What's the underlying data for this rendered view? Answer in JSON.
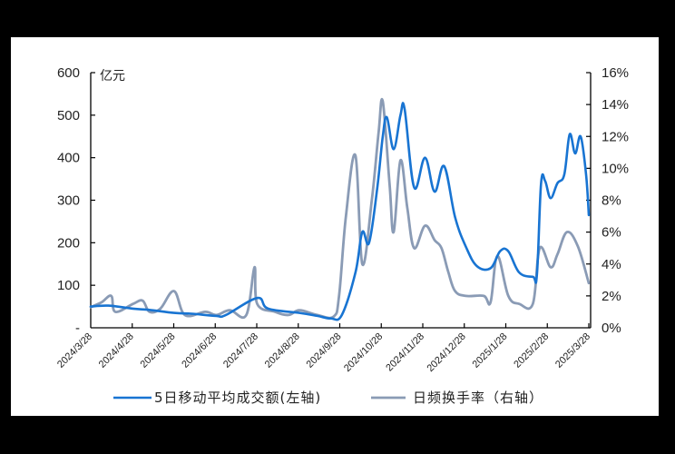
{
  "chart_data": {
    "type": "line",
    "title": "",
    "left_axis": {
      "unit_label": "亿元",
      "ticks": [
        "-",
        "100",
        "200",
        "300",
        "400",
        "500",
        "600"
      ],
      "ylim": [
        0,
        600
      ]
    },
    "right_axis": {
      "ticks": [
        "0%",
        "2%",
        "4%",
        "6%",
        "8%",
        "10%",
        "12%",
        "14%",
        "16%"
      ],
      "ylim": [
        0,
        16
      ]
    },
    "x_ticks": [
      "2024/3/28",
      "2024/4/28",
      "2024/5/28",
      "2024/6/28",
      "2024/7/28",
      "2024/8/28",
      "2024/9/28",
      "2024/10/28",
      "2024/11/28",
      "2024/12/28",
      "2025/1/28",
      "2025/2/28",
      "2025/3/28"
    ],
    "legend": {
      "position": "bottom",
      "entries": [
        "5日移动平均成交额(左轴)",
        "日频换手率（右轴）"
      ]
    },
    "grid": false,
    "series": [
      {
        "name": "5日移动平均成交额(左轴)",
        "axis": "left",
        "color": "#1874D2",
        "points": [
          [
            "2024/3/28",
            50
          ],
          [
            "2024/4/10",
            52
          ],
          [
            "2024/4/28",
            45
          ],
          [
            "2024/5/10",
            42
          ],
          [
            "2024/5/28",
            35
          ],
          [
            "2024/6/10",
            33
          ],
          [
            "2024/6/28",
            28
          ],
          [
            "2024/7/5",
            30
          ],
          [
            "2024/7/28",
            70
          ],
          [
            "2024/8/5",
            45
          ],
          [
            "2024/8/28",
            35
          ],
          [
            "2024/9/10",
            28
          ],
          [
            "2024/9/20",
            22
          ],
          [
            "2024/9/28",
            30
          ],
          [
            "2024/10/8",
            130
          ],
          [
            "2024/10/13",
            225
          ],
          [
            "2024/10/18",
            200
          ],
          [
            "2024/10/24",
            330
          ],
          [
            "2024/10/28",
            450
          ],
          [
            "2024/10/31",
            495
          ],
          [
            "2024/11/5",
            420
          ],
          [
            "2024/11/10",
            500
          ],
          [
            "2024/11/13",
            515
          ],
          [
            "2024/11/20",
            330
          ],
          [
            "2024/11/28",
            400
          ],
          [
            "2024/12/5",
            320
          ],
          [
            "2024/12/12",
            380
          ],
          [
            "2024/12/20",
            260
          ],
          [
            "2024/12/28",
            190
          ],
          [
            "2025/1/5",
            145
          ],
          [
            "2025/1/15",
            140
          ],
          [
            "2025/1/22",
            180
          ],
          [
            "2025/1/28",
            180
          ],
          [
            "2025/2/5",
            130
          ],
          [
            "2025/2/15",
            120
          ],
          [
            "2025/2/18",
            125
          ],
          [
            "2025/2/21",
            340
          ],
          [
            "2025/2/24",
            345
          ],
          [
            "2025/2/28",
            305
          ],
          [
            "2025/3/5",
            340
          ],
          [
            "2025/3/10",
            360
          ],
          [
            "2025/3/14",
            455
          ],
          [
            "2025/3/18",
            410
          ],
          [
            "2025/3/22",
            450
          ],
          [
            "2025/3/26",
            360
          ],
          [
            "2025/3/28",
            265
          ]
        ]
      },
      {
        "name": "日频换手率（右轴）",
        "axis": "right",
        "color": "#8A9BB5",
        "points": [
          [
            "2024/3/28",
            1.3
          ],
          [
            "2024/4/5",
            1.6
          ],
          [
            "2024/4/12",
            2.0
          ],
          [
            "2024/4/15",
            1.0
          ],
          [
            "2024/4/28",
            1.5
          ],
          [
            "2024/5/5",
            1.7
          ],
          [
            "2024/5/10",
            1.0
          ],
          [
            "2024/5/18",
            1.2
          ],
          [
            "2024/5/28",
            2.3
          ],
          [
            "2024/6/5",
            0.8
          ],
          [
            "2024/6/20",
            1.0
          ],
          [
            "2024/6/28",
            0.8
          ],
          [
            "2024/7/8",
            1.1
          ],
          [
            "2024/7/20",
            0.8
          ],
          [
            "2024/7/26",
            3.8
          ],
          [
            "2024/7/28",
            1.5
          ],
          [
            "2024/8/10",
            1.0
          ],
          [
            "2024/8/20",
            0.8
          ],
          [
            "2024/8/28",
            1.1
          ],
          [
            "2024/9/10",
            0.8
          ],
          [
            "2024/9/22",
            0.7
          ],
          [
            "2024/9/26",
            2.0
          ],
          [
            "2024/10/1",
            7.0
          ],
          [
            "2024/10/8",
            10.8
          ],
          [
            "2024/10/13",
            4.0
          ],
          [
            "2024/10/20",
            8.0
          ],
          [
            "2024/10/25",
            12.3
          ],
          [
            "2024/10/28",
            14.2
          ],
          [
            "2024/11/2",
            9.0
          ],
          [
            "2024/11/5",
            6.0
          ],
          [
            "2024/11/10",
            10.5
          ],
          [
            "2024/11/15",
            7.5
          ],
          [
            "2024/11/20",
            5.0
          ],
          [
            "2024/11/28",
            6.4
          ],
          [
            "2024/12/5",
            5.5
          ],
          [
            "2024/12/10",
            5.0
          ],
          [
            "2024/12/15",
            3.5
          ],
          [
            "2024/12/20",
            2.3
          ],
          [
            "2024/12/28",
            2.0
          ],
          [
            "2025/1/10",
            2.0
          ],
          [
            "2025/1/15",
            1.6
          ],
          [
            "2025/1/20",
            4.5
          ],
          [
            "2025/1/28",
            2.0
          ],
          [
            "2025/2/5",
            1.5
          ],
          [
            "2025/2/15",
            1.5
          ],
          [
            "2025/2/20",
            5.0
          ],
          [
            "2025/2/28",
            3.8
          ],
          [
            "2025/3/5",
            4.6
          ],
          [
            "2025/3/12",
            6.0
          ],
          [
            "2025/3/20",
            5.1
          ],
          [
            "2025/3/28",
            2.8
          ]
        ]
      }
    ]
  }
}
